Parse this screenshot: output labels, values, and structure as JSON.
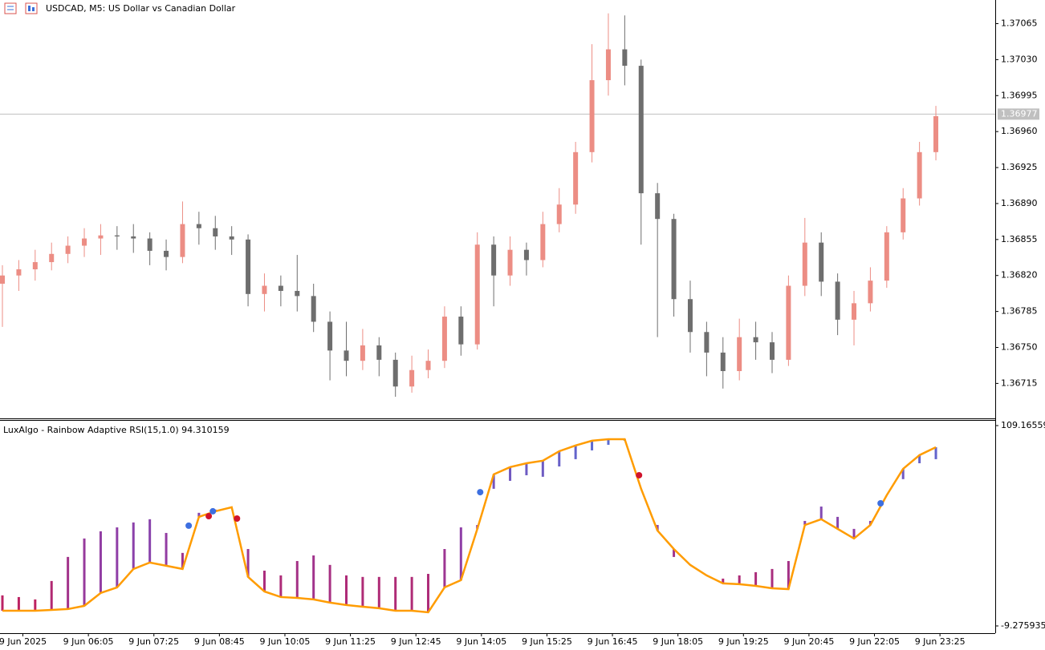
{
  "chart_data": [
    {
      "type": "candlestick",
      "title": "USDCAD, M5:  US Dollar vs Canadian Dollar",
      "x": [
        0,
        4,
        8,
        12,
        16,
        20,
        24,
        28,
        32,
        36,
        40,
        44,
        48,
        52,
        56,
        60,
        64,
        68,
        72,
        76,
        80,
        84,
        88,
        92,
        96,
        100,
        104,
        108,
        112,
        116,
        120,
        124,
        128,
        132,
        136,
        140,
        144,
        148,
        152,
        156,
        160,
        164,
        168,
        172,
        176,
        180,
        184,
        188,
        192,
        196,
        200,
        204,
        208,
        212,
        216,
        220,
        224,
        228
      ],
      "open": [
        1.36812,
        1.3682,
        1.36826,
        1.36833,
        1.36841,
        1.36849,
        1.36856,
        1.36859,
        1.36858,
        1.36856,
        1.36844,
        1.36838,
        1.3687,
        1.36866,
        1.36858,
        1.36855,
        1.36802,
        1.3681,
        1.36805,
        1.368,
        1.36775,
        1.36747,
        1.36737,
        1.36752,
        1.36738,
        1.36712,
        1.36728,
        1.36737,
        1.3678,
        1.36753,
        1.3685,
        1.3682,
        1.36845,
        1.36835,
        1.3687,
        1.36889,
        1.3694,
        1.3701,
        1.3704,
        1.37024,
        1.369,
        1.36875,
        1.36797,
        1.36765,
        1.36745,
        1.36727,
        1.3676,
        1.36755,
        1.36738,
        1.3681,
        1.36852,
        1.36814,
        1.36777,
        1.36793,
        1.36815,
        1.36862,
        1.36895,
        1.3694
      ],
      "high": [
        1.3683,
        1.36835,
        1.36845,
        1.36852,
        1.36858,
        1.36866,
        1.3687,
        1.36868,
        1.3687,
        1.36862,
        1.36855,
        1.36892,
        1.36882,
        1.36878,
        1.36868,
        1.3686,
        1.36822,
        1.3682,
        1.3684,
        1.36812,
        1.36785,
        1.36775,
        1.36768,
        1.3676,
        1.36745,
        1.36742,
        1.36748,
        1.3679,
        1.3679,
        1.36862,
        1.36858,
        1.36858,
        1.36852,
        1.36882,
        1.36905,
        1.3695,
        1.37045,
        1.37075,
        1.37073,
        1.3703,
        1.3691,
        1.3688,
        1.36815,
        1.36775,
        1.3676,
        1.36778,
        1.36775,
        1.36765,
        1.3682,
        1.36876,
        1.36862,
        1.36822,
        1.36805,
        1.36828,
        1.36868,
        1.36905,
        1.3695,
        1.36985
      ],
      "low": [
        1.3677,
        1.36805,
        1.36815,
        1.36825,
        1.36832,
        1.36838,
        1.3684,
        1.36845,
        1.36842,
        1.3683,
        1.36825,
        1.36832,
        1.3685,
        1.36845,
        1.3684,
        1.3679,
        1.36785,
        1.3679,
        1.36785,
        1.36765,
        1.36718,
        1.36722,
        1.36728,
        1.36722,
        1.36702,
        1.36706,
        1.3672,
        1.3673,
        1.36742,
        1.36748,
        1.3679,
        1.3681,
        1.3682,
        1.36828,
        1.36862,
        1.3688,
        1.3693,
        1.36995,
        1.37005,
        1.3685,
        1.3676,
        1.3678,
        1.36745,
        1.36722,
        1.3671,
        1.36718,
        1.36738,
        1.36725,
        1.36732,
        1.368,
        1.368,
        1.36762,
        1.36752,
        1.36785,
        1.36808,
        1.36855,
        1.36888,
        1.36932
      ],
      "close": [
        1.3682,
        1.36826,
        1.36833,
        1.36841,
        1.36849,
        1.36856,
        1.36859,
        1.36858,
        1.36856,
        1.36844,
        1.36838,
        1.3687,
        1.36866,
        1.36858,
        1.36855,
        1.36802,
        1.3681,
        1.36805,
        1.368,
        1.36775,
        1.36747,
        1.36737,
        1.36752,
        1.36738,
        1.36712,
        1.36728,
        1.36737,
        1.3678,
        1.36753,
        1.3685,
        1.3682,
        1.36845,
        1.36835,
        1.3687,
        1.36889,
        1.3694,
        1.3701,
        1.3704,
        1.37024,
        1.369,
        1.36875,
        1.36797,
        1.36765,
        1.36745,
        1.36727,
        1.3676,
        1.36755,
        1.36738,
        1.3681,
        1.36852,
        1.36814,
        1.36777,
        1.36793,
        1.36815,
        1.36862,
        1.36895,
        1.3694,
        1.36975
      ],
      "up_color": "#ec8d84",
      "down_color": "#6e6e6e",
      "xlim": [
        -0.59,
        242.5
      ],
      "ylim": [
        1.36681,
        1.37088
      ],
      "yticks": [
        {
          "value": 1.36715,
          "label": "1.36715"
        },
        {
          "value": 1.3675,
          "label": "1.36750"
        },
        {
          "value": 1.36785,
          "label": "1.36785"
        },
        {
          "value": 1.3682,
          "label": "1.36820"
        },
        {
          "value": 1.36855,
          "label": "1.36855"
        },
        {
          "value": 1.3689,
          "label": "1.36890"
        },
        {
          "value": 1.36925,
          "label": "1.36925"
        },
        {
          "value": 1.3696,
          "label": "1.36960"
        },
        {
          "value": 1.36995,
          "label": "1.36995"
        },
        {
          "value": 1.3703,
          "label": "1.37030"
        },
        {
          "value": 1.37065,
          "label": "1.37065"
        }
      ],
      "current_price": 1.36977
    },
    {
      "type": "line",
      "title": "LuxAlgo - Rainbow Adaptive RSI(15,1.0) 94.310159",
      "x": [
        0,
        4,
        8,
        12,
        16,
        20,
        24,
        28,
        32,
        36,
        40,
        44,
        48,
        52,
        56,
        60,
        64,
        68,
        72,
        76,
        80,
        84,
        88,
        92,
        96,
        100,
        104,
        108,
        112,
        116,
        120,
        124,
        128,
        132,
        136,
        140,
        144,
        148,
        152,
        156,
        160,
        164,
        168,
        172,
        176,
        180,
        184,
        188,
        192,
        196,
        200,
        204,
        208,
        212,
        216,
        220,
        224,
        228
      ],
      "values": [
        -0.3,
        -0.3,
        -0.3,
        0.2,
        0.7,
        2.6,
        10.2,
        13.5,
        24.4,
        28.2,
        26.3,
        24.4,
        55.2,
        58.5,
        60.9,
        19.7,
        11.1,
        7.8,
        7.3,
        6.4,
        4.5,
        3.1,
        2.1,
        1.2,
        -0.3,
        -0.3,
        -1.2,
        13.5,
        17.8,
        48.1,
        80.3,
        84.6,
        86.9,
        88.4,
        94.0,
        97.4,
        100.2,
        101.1,
        101.1,
        71.8,
        47.1,
        36.2,
        26.8,
        20.6,
        15.9,
        15.4,
        14.4,
        13.0,
        12.5,
        50.4,
        53.8,
        48.1,
        42.4,
        50.4,
        68.0,
        83.6,
        91.7,
        96.4
      ],
      "histogram": [
        8.8,
        7.8,
        6.4,
        17.3,
        31.5,
        42.4,
        46.7,
        49.0,
        51.9,
        53.8,
        45.7,
        33.9,
        57.6,
        59.5,
        60.9,
        36.2,
        23.4,
        20.6,
        29.1,
        32.4,
        26.8,
        20.6,
        19.7,
        19.7,
        19.7,
        19.7,
        21.5,
        36.2,
        49.0,
        50.4,
        71.8,
        76.5,
        79.8,
        78.9,
        85.0,
        89.3,
        94.5,
        97.8,
        100.2,
        71.8,
        50.4,
        31.5,
        26.8,
        20.6,
        18.7,
        20.6,
        22.5,
        24.4,
        29.1,
        52.8,
        61.3,
        55.2,
        48.1,
        52.8,
        68.0,
        77.5,
        86.9,
        89.3
      ],
      "color": "#ff9c00",
      "histogram_colors": [
        "#d3143f",
        "#8e3fa8",
        "#4a7ae0"
      ],
      "signals": [
        {
          "x": 45.5,
          "value": 50.0,
          "color": "#3d6fe0"
        },
        {
          "x": 50.4,
          "value": 55.6,
          "color": "#d0142c"
        },
        {
          "x": 51.4,
          "value": 58.5,
          "color": "#3d6fe0"
        },
        {
          "x": 57.3,
          "value": 54.2,
          "color": "#d0142c"
        },
        {
          "x": 116.7,
          "value": 69.8,
          "color": "#3d6fe0"
        },
        {
          "x": 155.5,
          "value": 79.8,
          "color": "#d0142c"
        },
        {
          "x": 214.5,
          "value": 63.2,
          "color": "#3d6fe0"
        }
      ],
      "xlim": [
        -0.59,
        242.5
      ],
      "ylim": [
        -13.55,
        112.48
      ],
      "yticks": [
        109.16559,
        -9.275935
      ],
      "xticks": [
        {
          "value": 5,
          "label": "9 Jun 2025"
        },
        {
          "value": 21,
          "label": "9 Jun 06:05"
        },
        {
          "value": 37,
          "label": "9 Jun 07:25"
        },
        {
          "value": 53,
          "label": "9 Jun 08:45"
        },
        {
          "value": 69,
          "label": "9 Jun 10:05"
        },
        {
          "value": 85,
          "label": "9 Jun 11:25"
        },
        {
          "value": 101,
          "label": "9 Jun 12:45"
        },
        {
          "value": 117,
          "label": "9 Jun 14:05"
        },
        {
          "value": 133,
          "label": "9 Jun 15:25"
        },
        {
          "value": 149,
          "label": "9 Jun 16:45"
        },
        {
          "value": 165,
          "label": "9 Jun 18:05"
        },
        {
          "value": 181,
          "label": "9 Jun 19:25"
        },
        {
          "value": 197,
          "label": "9 Jun 20:45"
        },
        {
          "value": 213,
          "label": "9 Jun 22:05"
        },
        {
          "value": 229,
          "label": "9 Jun 23:25"
        }
      ]
    }
  ]
}
